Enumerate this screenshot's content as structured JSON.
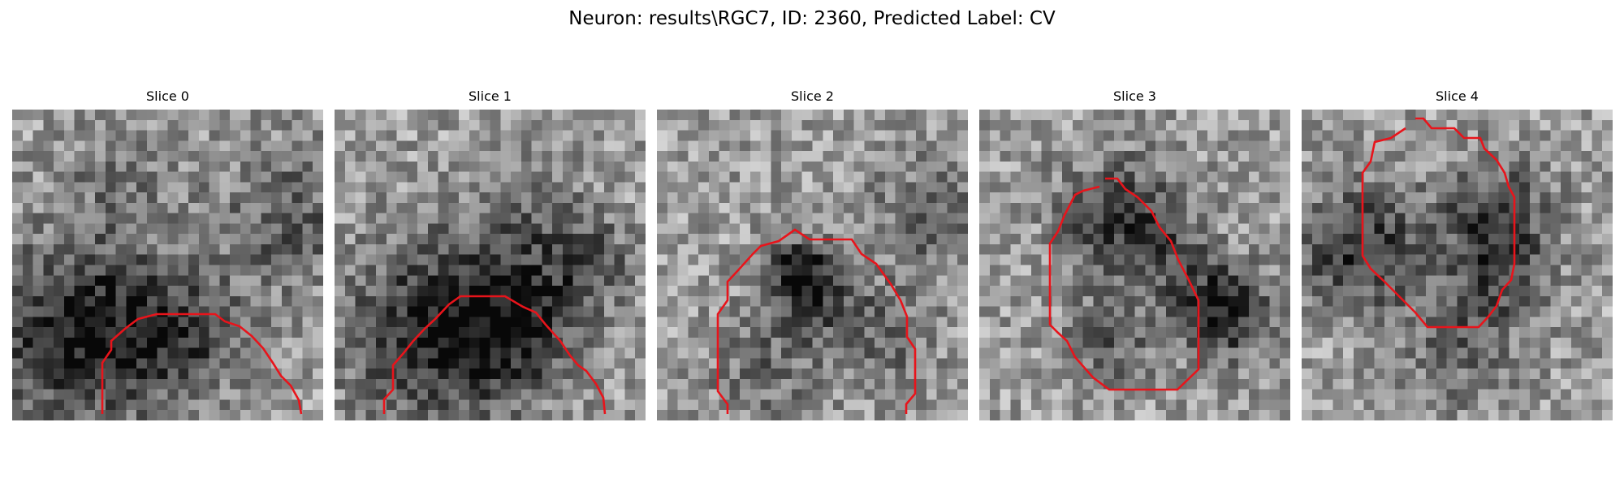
{
  "figure": {
    "title": "Neuron: results\\RGC7, ID: 2360, Predicted Label: CV",
    "contour_color": "#e8141b",
    "colormap": "gray",
    "panels": [
      {
        "title": "Slice 0"
      },
      {
        "title": "Slice 1"
      },
      {
        "title": "Slice 2"
      },
      {
        "title": "Slice 3"
      },
      {
        "title": "Slice 4"
      }
    ]
  }
}
